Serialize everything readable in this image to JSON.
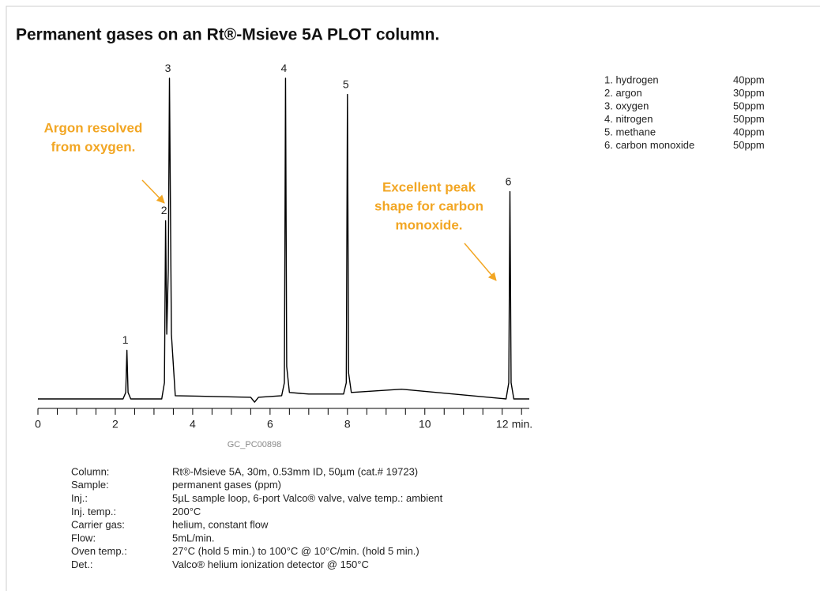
{
  "chart_data": {
    "type": "line",
    "title": "Permanent gases on an Rt®-Msieve 5A PLOT column.",
    "x": [
      0,
      2.2,
      2.27,
      2.3,
      2.33,
      2.4,
      3.2,
      3.27,
      3.3,
      3.33,
      3.37,
      3.4,
      3.45,
      3.55,
      5.5,
      5.6,
      5.7,
      6.3,
      6.37,
      6.4,
      6.43,
      6.5,
      7.0,
      7.9,
      7.97,
      8.0,
      8.03,
      8.1,
      9.4,
      12.1,
      12.17,
      12.2,
      12.23,
      12.3,
      12.7
    ],
    "values": [
      0,
      0,
      2,
      15,
      2,
      0,
      0,
      5,
      55,
      20,
      40,
      99,
      20,
      1,
      0.5,
      -1,
      0.5,
      1,
      5,
      99,
      10,
      2,
      1.5,
      1.5,
      5,
      94,
      8,
      2,
      3,
      0,
      5,
      64,
      5,
      0,
      0
    ],
    "color": "#000000",
    "xlim": [
      0,
      12.7
    ],
    "ylim": [
      0,
      100
    ],
    "xticks": [
      0,
      2,
      4,
      6,
      8,
      10,
      12
    ],
    "xminorticks": [
      0.5,
      1,
      1.5,
      2.5,
      3,
      3.5,
      4.5,
      5,
      5.5,
      6.5,
      7,
      7.5,
      8.5,
      9,
      9.5,
      10.5,
      11,
      11.5,
      12.5
    ],
    "xlabel": "min.",
    "peaks": [
      {
        "label": "1",
        "x": 2.3,
        "height": 15
      },
      {
        "label": "2",
        "x": 3.3,
        "height": 55
      },
      {
        "label": "3",
        "x": 3.4,
        "height": 99
      },
      {
        "label": "4",
        "x": 6.4,
        "height": 99
      },
      {
        "label": "5",
        "x": 8.0,
        "height": 94
      },
      {
        "label": "6",
        "x": 12.2,
        "height": 64
      }
    ],
    "annotations": [
      [
        "Argon resolved",
        "from oxygen."
      ],
      [
        "Excellent peak",
        "shape for carbon",
        "monoxide."
      ]
    ],
    "code": "GC_PC00898",
    "legend": [
      [
        "1. hydrogen",
        "40ppm"
      ],
      [
        "2. argon",
        "30ppm"
      ],
      [
        "3. oxygen",
        "50ppm"
      ],
      [
        "4. nitrogen",
        "50ppm"
      ],
      [
        "5. methane",
        "40ppm"
      ],
      [
        "6. carbon monoxide",
        "50ppm"
      ]
    ],
    "conditions": [
      [
        "Column:",
        "Rt®-Msieve 5A, 30m, 0.53mm ID, 50µm (cat.# 19723)"
      ],
      [
        "Sample:",
        "permanent gases (ppm)"
      ],
      [
        "Inj.:",
        "5µL sample loop, 6-port Valco® valve, valve temp.: ambient"
      ],
      [
        "Inj. temp.:",
        "200°C"
      ],
      [
        "Carrier gas:",
        "helium, constant flow"
      ],
      [
        "Flow:",
        "5mL/min."
      ],
      [
        "Oven temp.:",
        "27°C (hold 5 min.) to 100°C @ 10°C/min. (hold 5 min.)"
      ],
      [
        "Det.:",
        "Valco® helium ionization detector @ 150°C"
      ]
    ]
  }
}
